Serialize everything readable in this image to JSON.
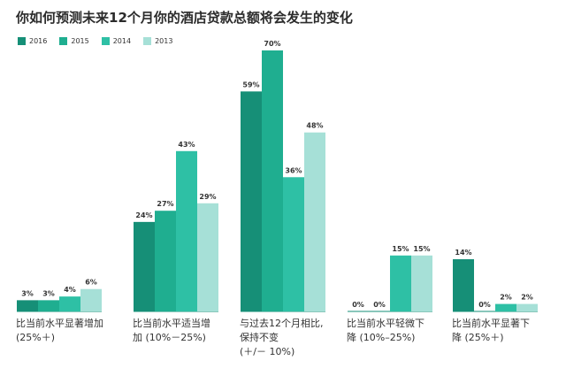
{
  "title": "你如何预测未来12个月你的酒店贷款总额将会发生的变化",
  "chart_data": {
    "type": "bar",
    "categories": [
      [
        "比当前水平显著增加",
        "(25%＋)"
      ],
      [
        "比当前水平适当增",
        "加 (10%－25%)"
      ],
      [
        "与过去12个月相比,",
        "保持不变",
        "(＋/－ 10%)"
      ],
      [
        "比当前水平轻微下",
        "降 (10%–25%)"
      ],
      [
        "比当前水平显著下",
        "降 (25%＋)"
      ]
    ],
    "series": [
      {
        "name": "2016",
        "color": "#168f77",
        "values": [
          3,
          24,
          59,
          0,
          14
        ],
        "labels": [
          "3%",
          "24%",
          "59%",
          "0%",
          "14%"
        ]
      },
      {
        "name": "2015",
        "color": "#1fae90",
        "values": [
          3,
          27,
          70,
          0,
          0
        ],
        "labels": [
          "3%",
          "27%",
          "70%",
          "0%",
          "0%"
        ]
      },
      {
        "name": "2014",
        "color": "#2ec0a5",
        "values": [
          4,
          43,
          36,
          15,
          2
        ],
        "labels": [
          "4%",
          "43%",
          "36%",
          "15%",
          "2%"
        ]
      },
      {
        "name": "2013",
        "color": "#a6e0d7",
        "values": [
          6,
          29,
          48,
          15,
          2
        ],
        "labels": [
          "6%",
          "29%",
          "48%",
          "15%",
          "2%"
        ]
      }
    ],
    "ylim": [
      0,
      70
    ],
    "legend": "top-left",
    "grid": false
  }
}
